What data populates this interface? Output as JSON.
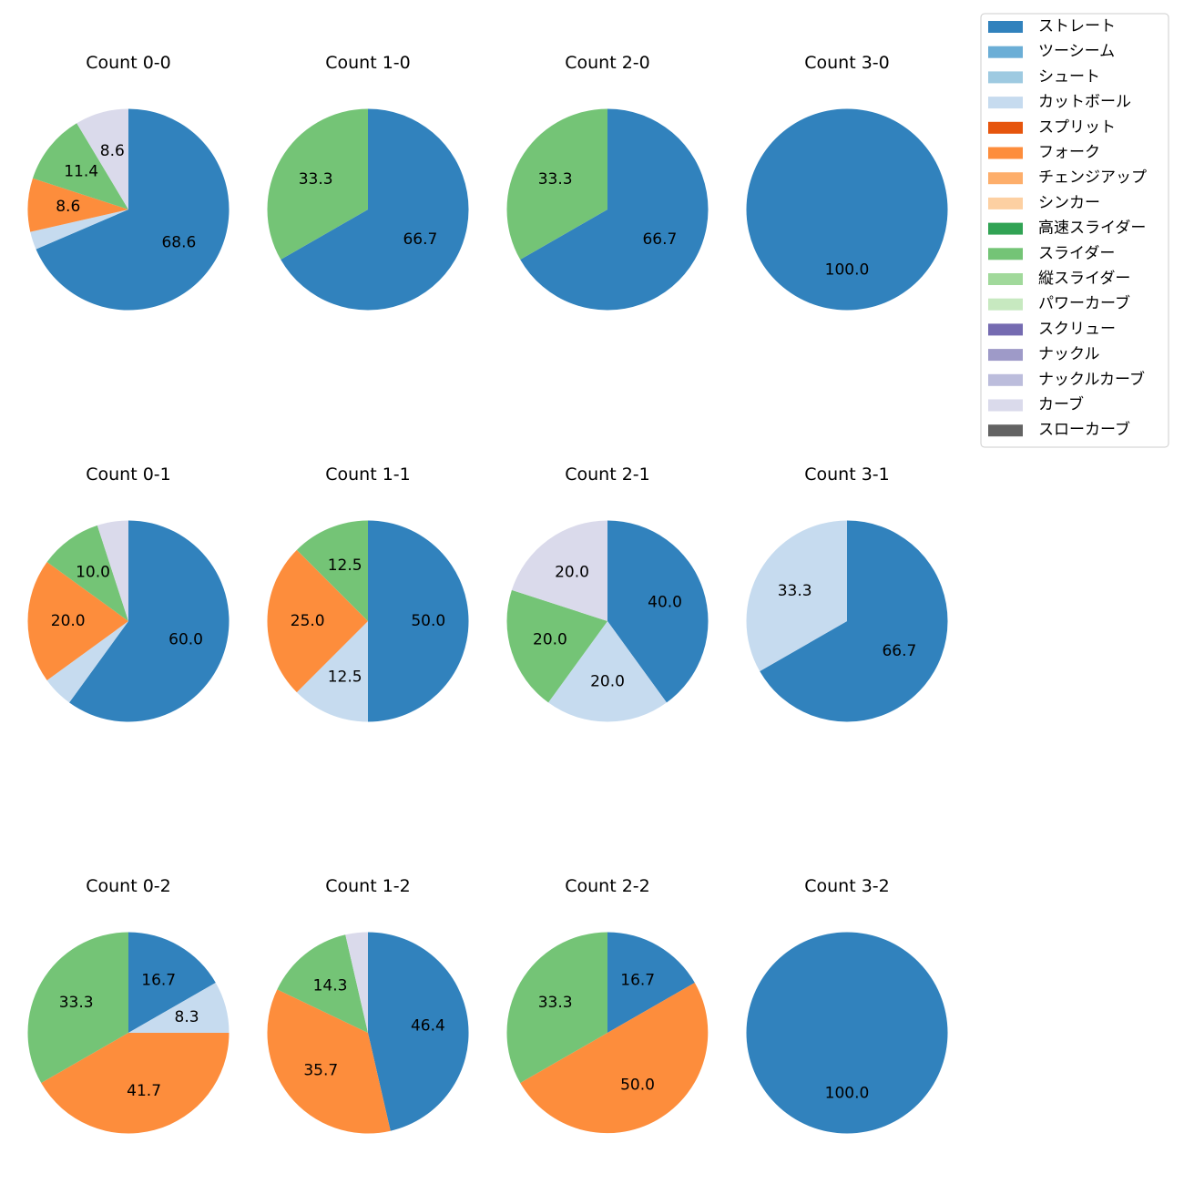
{
  "legend": [
    {
      "name": "ストレート",
      "color": "#3182bd"
    },
    {
      "name": "ツーシーム",
      "color": "#6baed6"
    },
    {
      "name": "シュート",
      "color": "#9ecae1"
    },
    {
      "name": "カットボール",
      "color": "#c6dbef"
    },
    {
      "name": "スプリット",
      "color": "#e6550d"
    },
    {
      "name": "フォーク",
      "color": "#fd8d3c"
    },
    {
      "name": "チェンジアップ",
      "color": "#fdae6b"
    },
    {
      "name": "シンカー",
      "color": "#fdd0a2"
    },
    {
      "name": "高速スライダー",
      "color": "#31a354"
    },
    {
      "name": "スライダー",
      "color": "#74c476"
    },
    {
      "name": "縦スライダー",
      "color": "#a1d99b"
    },
    {
      "name": "パワーカーブ",
      "color": "#c7e9c0"
    },
    {
      "name": "スクリュー",
      "color": "#756bb1"
    },
    {
      "name": "ナックル",
      "color": "#9e9ac8"
    },
    {
      "name": "ナックルカーブ",
      "color": "#bcbddc"
    },
    {
      "name": "カーブ",
      "color": "#dadaeb"
    },
    {
      "name": "スローカーブ",
      "color": "#636363"
    }
  ],
  "chart_data": [
    {
      "type": "pie",
      "title": "Count 0-0",
      "slices": [
        {
          "pitch": "ストレート",
          "value": 68.6,
          "label": "68.6"
        },
        {
          "pitch": "カットボール",
          "value": 2.9,
          "label": ""
        },
        {
          "pitch": "フォーク",
          "value": 8.6,
          "label": "8.6"
        },
        {
          "pitch": "スライダー",
          "value": 11.4,
          "label": "11.4"
        },
        {
          "pitch": "カーブ",
          "value": 8.6,
          "label": "8.6"
        }
      ]
    },
    {
      "type": "pie",
      "title": "Count 1-0",
      "slices": [
        {
          "pitch": "ストレート",
          "value": 66.7,
          "label": "66.7"
        },
        {
          "pitch": "スライダー",
          "value": 33.3,
          "label": "33.3"
        }
      ]
    },
    {
      "type": "pie",
      "title": "Count 2-0",
      "slices": [
        {
          "pitch": "ストレート",
          "value": 66.7,
          "label": "66.7"
        },
        {
          "pitch": "スライダー",
          "value": 33.3,
          "label": "33.3"
        }
      ]
    },
    {
      "type": "pie",
      "title": "Count 3-0",
      "slices": [
        {
          "pitch": "ストレート",
          "value": 100.0,
          "label": "100.0"
        }
      ]
    },
    {
      "type": "pie",
      "title": "Count 0-1",
      "slices": [
        {
          "pitch": "ストレート",
          "value": 60.0,
          "label": "60.0"
        },
        {
          "pitch": "カットボール",
          "value": 5.0,
          "label": ""
        },
        {
          "pitch": "フォーク",
          "value": 20.0,
          "label": "20.0"
        },
        {
          "pitch": "スライダー",
          "value": 10.0,
          "label": "10.0"
        },
        {
          "pitch": "カーブ",
          "value": 5.0,
          "label": ""
        }
      ]
    },
    {
      "type": "pie",
      "title": "Count 1-1",
      "slices": [
        {
          "pitch": "ストレート",
          "value": 50.0,
          "label": "50.0"
        },
        {
          "pitch": "カットボール",
          "value": 12.5,
          "label": "12.5"
        },
        {
          "pitch": "フォーク",
          "value": 25.0,
          "label": "25.0"
        },
        {
          "pitch": "スライダー",
          "value": 12.5,
          "label": "12.5"
        }
      ]
    },
    {
      "type": "pie",
      "title": "Count 2-1",
      "slices": [
        {
          "pitch": "ストレート",
          "value": 40.0,
          "label": "40.0"
        },
        {
          "pitch": "カットボール",
          "value": 20.0,
          "label": "20.0"
        },
        {
          "pitch": "スライダー",
          "value": 20.0,
          "label": "20.0"
        },
        {
          "pitch": "カーブ",
          "value": 20.0,
          "label": "20.0"
        }
      ]
    },
    {
      "type": "pie",
      "title": "Count 3-1",
      "slices": [
        {
          "pitch": "ストレート",
          "value": 66.7,
          "label": "66.7"
        },
        {
          "pitch": "カットボール",
          "value": 33.3,
          "label": "33.3"
        }
      ]
    },
    {
      "type": "pie",
      "title": "Count 0-2",
      "slices": [
        {
          "pitch": "ストレート",
          "value": 16.7,
          "label": "16.7"
        },
        {
          "pitch": "カットボール",
          "value": 8.3,
          "label": "8.3"
        },
        {
          "pitch": "フォーク",
          "value": 41.7,
          "label": "41.7"
        },
        {
          "pitch": "スライダー",
          "value": 33.3,
          "label": "33.3"
        }
      ]
    },
    {
      "type": "pie",
      "title": "Count 1-2",
      "slices": [
        {
          "pitch": "ストレート",
          "value": 46.4,
          "label": "46.4"
        },
        {
          "pitch": "フォーク",
          "value": 35.7,
          "label": "35.7"
        },
        {
          "pitch": "スライダー",
          "value": 14.3,
          "label": "14.3"
        },
        {
          "pitch": "カーブ",
          "value": 3.6,
          "label": ""
        }
      ]
    },
    {
      "type": "pie",
      "title": "Count 2-2",
      "slices": [
        {
          "pitch": "ストレート",
          "value": 16.7,
          "label": "16.7"
        },
        {
          "pitch": "フォーク",
          "value": 50.0,
          "label": "50.0"
        },
        {
          "pitch": "スライダー",
          "value": 33.3,
          "label": "33.3"
        }
      ]
    },
    {
      "type": "pie",
      "title": "Count 3-2",
      "slices": [
        {
          "pitch": "ストレート",
          "value": 100.0,
          "label": "100.0"
        }
      ]
    }
  ]
}
